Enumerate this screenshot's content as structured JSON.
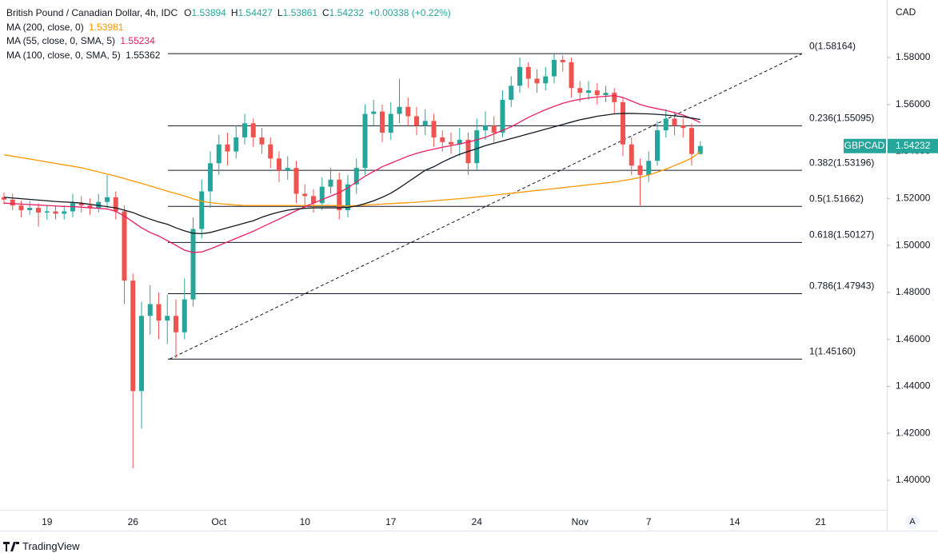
{
  "chart_data": {
    "type": "candlestick",
    "title": "British Pound / Canadian Dollar, 4h, IDC",
    "ohlc_labels": [
      "O",
      "H",
      "L",
      "C"
    ],
    "change_label": "+0.00338 (+0.22%)",
    "symbol": "GBPCAD",
    "currency": "CAD",
    "up_color": "#26a69a",
    "down_color": "#ef5350",
    "categories": [
      null,
      null,
      null,
      null,
      null,
      "19",
      null,
      null,
      null,
      null,
      null,
      null,
      null,
      null,
      null,
      "26",
      null,
      null,
      null,
      null,
      null,
      null,
      null,
      null,
      null,
      "Oct",
      null,
      null,
      null,
      null,
      null,
      null,
      null,
      null,
      null,
      "10",
      null,
      null,
      null,
      null,
      null,
      null,
      null,
      null,
      null,
      "17",
      null,
      null,
      null,
      null,
      null,
      null,
      null,
      null,
      null,
      "24",
      null,
      null,
      null,
      null,
      null,
      null,
      null,
      null,
      null,
      null,
      null,
      "Nov",
      null,
      null,
      null,
      null,
      null,
      null,
      null,
      "7",
      null,
      null,
      null,
      null,
      null,
      null,
      null,
      null,
      null,
      "14",
      null,
      null,
      null,
      null,
      null,
      null,
      null,
      null,
      null,
      "21"
    ],
    "open": [
      1.5205,
      1.5195,
      1.517,
      1.515,
      1.516,
      1.514,
      1.5145,
      1.5135,
      1.5145,
      1.518,
      1.517,
      1.516,
      1.5185,
      1.5205,
      1.5145,
      1.485,
      1.438,
      1.47,
      1.475,
      1.468,
      1.47,
      1.463,
      1.477,
      1.507,
      1.523,
      1.535,
      1.543,
      1.54,
      1.546,
      1.552,
      1.546,
      1.543,
      1.537,
      1.532,
      1.533,
      1.522,
      1.521,
      1.518,
      1.525,
      1.528,
      1.515,
      1.526,
      1.533,
      1.556,
      1.557,
      1.548,
      1.556,
      1.559,
      1.555,
      1.551,
      1.553,
      1.546,
      1.544,
      1.543,
      1.545,
      1.535,
      1.549,
      1.551,
      1.548,
      1.562,
      1.568,
      1.576,
      1.571,
      1.569,
      1.572,
      1.579,
      1.578,
      1.567,
      1.565,
      1.566,
      1.564,
      1.565,
      1.561,
      1.543,
      1.534,
      1.53,
      1.536,
      1.549,
      1.554,
      1.551,
      1.55,
      1.53894,
      null,
      null,
      null,
      null,
      null,
      null,
      null,
      null,
      null,
      null,
      null,
      null,
      null,
      null
    ],
    "high": [
      1.5225,
      1.522,
      1.519,
      1.519,
      1.518,
      1.517,
      1.517,
      1.517,
      1.522,
      1.521,
      1.52,
      1.522,
      1.53,
      1.523,
      1.517,
      1.488,
      1.476,
      1.483,
      1.48,
      1.479,
      1.477,
      1.486,
      1.512,
      1.528,
      1.54,
      1.547,
      1.548,
      1.551,
      1.556,
      1.554,
      1.55,
      1.546,
      1.54,
      1.538,
      1.536,
      1.526,
      1.524,
      1.529,
      1.533,
      1.531,
      1.53,
      1.537,
      1.56,
      1.562,
      1.56,
      1.561,
      1.571,
      1.563,
      1.559,
      1.558,
      1.556,
      1.549,
      1.548,
      1.55,
      1.548,
      1.554,
      1.557,
      1.555,
      1.566,
      1.572,
      1.58,
      1.578,
      1.575,
      1.576,
      1.5815,
      1.581,
      1.58,
      1.57,
      1.57,
      1.569,
      1.568,
      1.567,
      1.563,
      1.546,
      1.537,
      1.54,
      1.553,
      1.558,
      1.557,
      1.554,
      1.552,
      1.54427,
      null,
      null,
      null,
      null,
      null,
      null,
      null,
      null,
      null,
      null,
      null,
      null,
      null,
      null
    ],
    "low": [
      1.5175,
      1.515,
      1.512,
      1.513,
      1.508,
      1.511,
      1.511,
      1.511,
      1.512,
      1.514,
      1.513,
      1.514,
      1.516,
      1.511,
      1.475,
      1.405,
      1.422,
      1.462,
      1.46,
      1.458,
      1.452,
      1.46,
      1.474,
      1.503,
      1.516,
      1.53,
      1.534,
      1.537,
      1.543,
      1.542,
      1.539,
      1.533,
      1.527,
      1.528,
      1.518,
      1.516,
      1.514,
      1.515,
      1.522,
      1.511,
      1.512,
      1.522,
      1.53,
      1.551,
      1.544,
      1.545,
      1.552,
      1.551,
      1.547,
      1.547,
      1.542,
      1.54,
      1.539,
      1.538,
      1.53,
      1.532,
      1.545,
      1.544,
      1.546,
      1.559,
      1.565,
      1.567,
      1.565,
      1.566,
      1.569,
      1.574,
      1.563,
      1.561,
      1.562,
      1.56,
      1.561,
      1.556,
      1.538,
      1.53,
      1.517,
      1.527,
      1.534,
      1.546,
      1.547,
      1.546,
      1.534,
      1.53861,
      null,
      null,
      null,
      null,
      null,
      null,
      null,
      null,
      null,
      null,
      null,
      null,
      null,
      null
    ],
    "close": [
      1.5195,
      1.517,
      1.515,
      1.516,
      1.514,
      1.5145,
      1.5135,
      1.5145,
      1.518,
      1.517,
      1.516,
      1.5185,
      1.5205,
      1.5145,
      1.485,
      1.438,
      1.47,
      1.475,
      1.468,
      1.47,
      1.463,
      1.477,
      1.507,
      1.523,
      1.535,
      1.543,
      1.54,
      1.546,
      1.552,
      1.546,
      1.543,
      1.537,
      1.532,
      1.533,
      1.522,
      1.521,
      1.518,
      1.525,
      1.528,
      1.515,
      1.526,
      1.533,
      1.556,
      1.557,
      1.548,
      1.556,
      1.559,
      1.555,
      1.551,
      1.553,
      1.546,
      1.544,
      1.543,
      1.545,
      1.535,
      1.549,
      1.551,
      1.548,
      1.562,
      1.568,
      1.576,
      1.571,
      1.569,
      1.572,
      1.579,
      1.578,
      1.567,
      1.565,
      1.566,
      1.564,
      1.565,
      1.561,
      1.543,
      1.534,
      1.53,
      1.536,
      1.549,
      1.554,
      1.551,
      1.55,
      1.53894,
      1.54232,
      null,
      null,
      null,
      null,
      null,
      null,
      null,
      null,
      null,
      null,
      null,
      null,
      null,
      null
    ],
    "series": [
      {
        "name": "MA (200, close, 0)",
        "color": "#ff9800",
        "values": [
          1.5386,
          1.538,
          1.5374,
          1.5368,
          1.5362,
          1.5355,
          1.5349,
          1.5343,
          1.5337,
          1.5331,
          1.5322,
          1.5313,
          1.5304,
          1.5295,
          1.5285,
          1.5274,
          1.5264,
          1.5253,
          1.5242,
          1.5231,
          1.5221,
          1.5211,
          1.5198,
          1.5188,
          1.5182,
          1.5178,
          1.5175,
          1.5172,
          1.517,
          1.517,
          1.517,
          1.517,
          1.517,
          1.517,
          1.517,
          1.517,
          1.517,
          1.517,
          1.517,
          1.517,
          1.5168,
          1.517,
          1.5172,
          1.5174,
          1.5176,
          1.5178,
          1.518,
          1.5182,
          1.5184,
          1.5187,
          1.519,
          1.5193,
          1.5196,
          1.5199,
          1.5202,
          1.5206,
          1.521,
          1.5214,
          1.5218,
          1.5222,
          1.5226,
          1.523,
          1.5234,
          1.5238,
          1.5242,
          1.5246,
          1.525,
          1.5254,
          1.5258,
          1.5262,
          1.5266,
          1.527,
          1.5276,
          1.5282,
          1.529,
          1.53,
          1.5312,
          1.5325,
          1.534,
          1.5355,
          1.5372,
          1.53981,
          null,
          null,
          null,
          null,
          null,
          null,
          null,
          null,
          null,
          null,
          null,
          null,
          null,
          null
        ]
      },
      {
        "name": "MA (55, close, 0, SMA, 5)",
        "color": "#e91e63",
        "values": [
          1.518,
          1.5178,
          1.5176,
          1.5174,
          1.5172,
          1.517,
          1.5168,
          1.5166,
          1.5165,
          1.5163,
          1.516,
          1.5158,
          1.5155,
          1.5145,
          1.5125,
          1.51,
          1.5075,
          1.5055,
          1.504,
          1.502,
          1.5,
          1.498,
          1.497,
          1.4972,
          1.4985,
          1.5,
          1.5015,
          1.503,
          1.5045,
          1.506,
          1.5078,
          1.5095,
          1.5112,
          1.513,
          1.5148,
          1.5165,
          1.518,
          1.5195,
          1.521,
          1.5225,
          1.5245,
          1.527,
          1.5295,
          1.5315,
          1.5335,
          1.535,
          1.5365,
          1.538,
          1.5392,
          1.5402,
          1.541,
          1.5418,
          1.5425,
          1.5432,
          1.544,
          1.545,
          1.546,
          1.5475,
          1.549,
          1.5505,
          1.5525,
          1.5545,
          1.5562,
          1.5578,
          1.5592,
          1.5605,
          1.5615,
          1.5622,
          1.5628,
          1.5632,
          1.5635,
          1.5638,
          1.563,
          1.5615,
          1.56,
          1.559,
          1.5582,
          1.5575,
          1.5565,
          1.5555,
          1.554,
          1.55234,
          null,
          null,
          null,
          null,
          null,
          null,
          null,
          null,
          null,
          null,
          null,
          null,
          null,
          null
        ]
      },
      {
        "name": "MA (100, close, 0, SMA, 5)",
        "color": "#131722",
        "values": [
          1.5205,
          1.5202,
          1.5199,
          1.5196,
          1.5193,
          1.519,
          1.5187,
          1.5185,
          1.5183,
          1.518,
          1.5175,
          1.517,
          1.5165,
          1.516,
          1.515,
          1.514,
          1.5125,
          1.5112,
          1.51,
          1.509,
          1.5075,
          1.5062,
          1.5052,
          1.505,
          1.5055,
          1.5065,
          1.5075,
          1.5085,
          1.5095,
          1.5105,
          1.512,
          1.5132,
          1.5142,
          1.515,
          1.5155,
          1.5158,
          1.516,
          1.516,
          1.516,
          1.516,
          1.5162,
          1.5168,
          1.5178,
          1.519,
          1.5205,
          1.5222,
          1.5245,
          1.527,
          1.5295,
          1.532,
          1.5335,
          1.5355,
          1.5372,
          1.5388,
          1.54,
          1.5412,
          1.5425,
          1.5435,
          1.5445,
          1.5455,
          1.5465,
          1.5475,
          1.5485,
          1.5495,
          1.5505,
          1.5515,
          1.5525,
          1.5535,
          1.5542,
          1.555,
          1.5555,
          1.556,
          1.5562,
          1.5562,
          1.5561,
          1.556,
          1.5558,
          1.5555,
          1.5552,
          1.5548,
          1.5542,
          1.55362,
          null,
          null,
          null,
          null,
          null,
          null,
          null,
          null,
          null,
          null,
          null,
          null,
          null,
          null
        ]
      }
    ],
    "fibonacci": [
      {
        "value": 1.58164,
        "label": "0(1.58164)"
      },
      {
        "value": 1.55095,
        "label": "0.236(1.55095)"
      },
      {
        "value": 1.53196,
        "label": "0.382(1.53196)"
      },
      {
        "value": 1.51662,
        "label": "0.5(1.51662)"
      },
      {
        "value": 1.50127,
        "label": "0.618(1.50127)"
      },
      {
        "value": 1.47943,
        "label": "0.786(1.47943)"
      },
      {
        "value": 1.4516,
        "label": "1(1.45160)"
      }
    ],
    "ylim": [
      1.3874,
      1.6045
    ],
    "yticks": [
      {
        "value": 1.4,
        "label": "1.40000"
      },
      {
        "value": 1.42,
        "label": "1.42000"
      },
      {
        "value": 1.44,
        "label": "1.44000"
      },
      {
        "value": 1.46,
        "label": "1.46000"
      },
      {
        "value": 1.48,
        "label": "1.48000"
      },
      {
        "value": 1.5,
        "label": "1.50000"
      },
      {
        "value": 1.52,
        "label": "1.52000"
      },
      {
        "value": 1.54,
        "label": "1.54000"
      },
      {
        "value": 1.56,
        "label": "1.56000"
      },
      {
        "value": 1.58,
        "label": "1.58000"
      }
    ]
  },
  "footer": {
    "brand": "TradingView",
    "scale_button": "A"
  }
}
